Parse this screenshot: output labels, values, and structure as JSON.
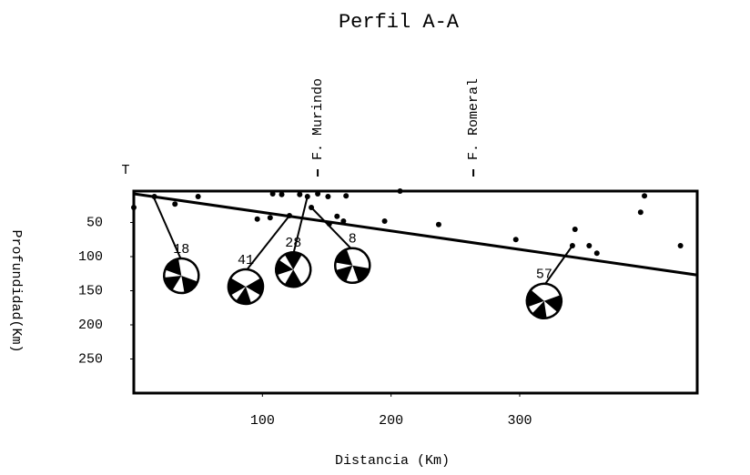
{
  "chart_data": {
    "type": "scatter",
    "title": "Perfil A-A",
    "x_label": "Distancia (Km)",
    "y_label": "Profundidad(Km)",
    "corner_label": "T",
    "xlim": [
      0,
      438
    ],
    "ylim": [
      0,
      300
    ],
    "xticks": [
      100,
      200,
      300
    ],
    "yticks": [
      50,
      100,
      150,
      200,
      250
    ],
    "y_inverted": true,
    "color": "#000000",
    "x": [
      0,
      16,
      32,
      50,
      96,
      106,
      108,
      115,
      121,
      129,
      135,
      138,
      143,
      151,
      158,
      163,
      152,
      165,
      195,
      207,
      237,
      297,
      343,
      341,
      354,
      360,
      394,
      397,
      425
    ],
    "values": [
      28,
      12,
      23,
      12,
      45,
      43,
      8,
      9,
      40,
      9,
      12,
      28,
      8,
      12,
      41,
      48,
      52,
      11,
      48,
      4,
      53,
      75,
      60,
      84,
      84,
      95,
      35,
      11,
      84
    ],
    "trend_line": {
      "x": [
        0,
        438
      ],
      "values": [
        8,
        127
      ]
    },
    "faults": [
      {
        "label": "F. Murindo",
        "x": 143
      },
      {
        "label": "F. Romeral",
        "x": 264
      }
    ],
    "mechanisms": [
      {
        "label": "18",
        "x": 37,
        "depth": 128,
        "event_x": 15,
        "event_depth": 11
      },
      {
        "label": "41",
        "x": 87,
        "depth": 144,
        "event_x": 121,
        "event_depth": 40
      },
      {
        "label": "28",
        "x": 124,
        "depth": 119,
        "event_x": 135,
        "event_depth": 12
      },
      {
        "label": "8",
        "x": 170,
        "depth": 113,
        "event_x": 138,
        "event_depth": 28
      },
      {
        "label": "57",
        "x": 319,
        "depth": 165,
        "event_x": 341,
        "event_depth": 84
      }
    ]
  }
}
